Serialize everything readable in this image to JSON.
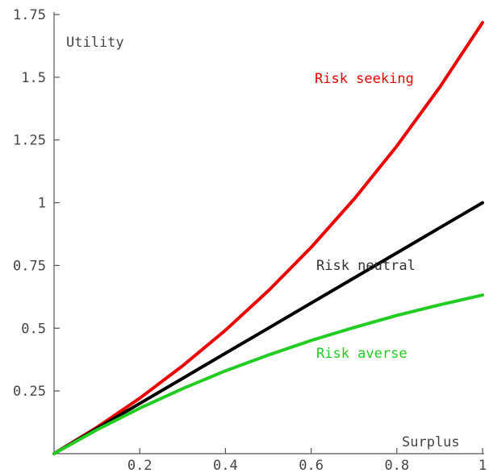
{
  "chart_data": {
    "type": "line",
    "title": "",
    "xlabel": "Surplus",
    "ylabel": "Utility",
    "xlim": [
      0,
      1
    ],
    "ylim": [
      0,
      1.75
    ],
    "grid": false,
    "legend": "inline labels",
    "x_ticks": [
      {
        "value": 0.2,
        "label": "0.2"
      },
      {
        "value": 0.4,
        "label": "0.4"
      },
      {
        "value": 0.6,
        "label": "0.6"
      },
      {
        "value": 0.8,
        "label": "0.8"
      },
      {
        "value": 1.0,
        "label": "1"
      }
    ],
    "y_ticks": [
      {
        "value": 0.25,
        "label": "0.25"
      },
      {
        "value": 0.5,
        "label": "0.5"
      },
      {
        "value": 0.75,
        "label": "0.75"
      },
      {
        "value": 1.0,
        "label": "1"
      },
      {
        "value": 1.25,
        "label": "1.25"
      },
      {
        "value": 1.5,
        "label": "1.5"
      },
      {
        "value": 1.75,
        "label": "1.75"
      }
    ],
    "x": [
      0,
      0.1,
      0.2,
      0.3,
      0.4,
      0.5,
      0.6,
      0.7,
      0.8,
      0.9,
      1.0
    ],
    "series": [
      {
        "name": "Risk seeking",
        "color": "#ee0000",
        "values": [
          0,
          0.105,
          0.221,
          0.35,
          0.492,
          0.649,
          0.822,
          1.014,
          1.226,
          1.46,
          1.718
        ]
      },
      {
        "name": "Risk neutral",
        "color": "#000000",
        "values": [
          0,
          0.1,
          0.2,
          0.3,
          0.4,
          0.5,
          0.6,
          0.7,
          0.8,
          0.9,
          1.0
        ]
      },
      {
        "name": "Risk averse",
        "color": "#22cc22",
        "values": [
          0,
          0.095,
          0.181,
          0.259,
          0.33,
          0.393,
          0.451,
          0.503,
          0.551,
          0.593,
          0.632
        ]
      }
    ]
  }
}
